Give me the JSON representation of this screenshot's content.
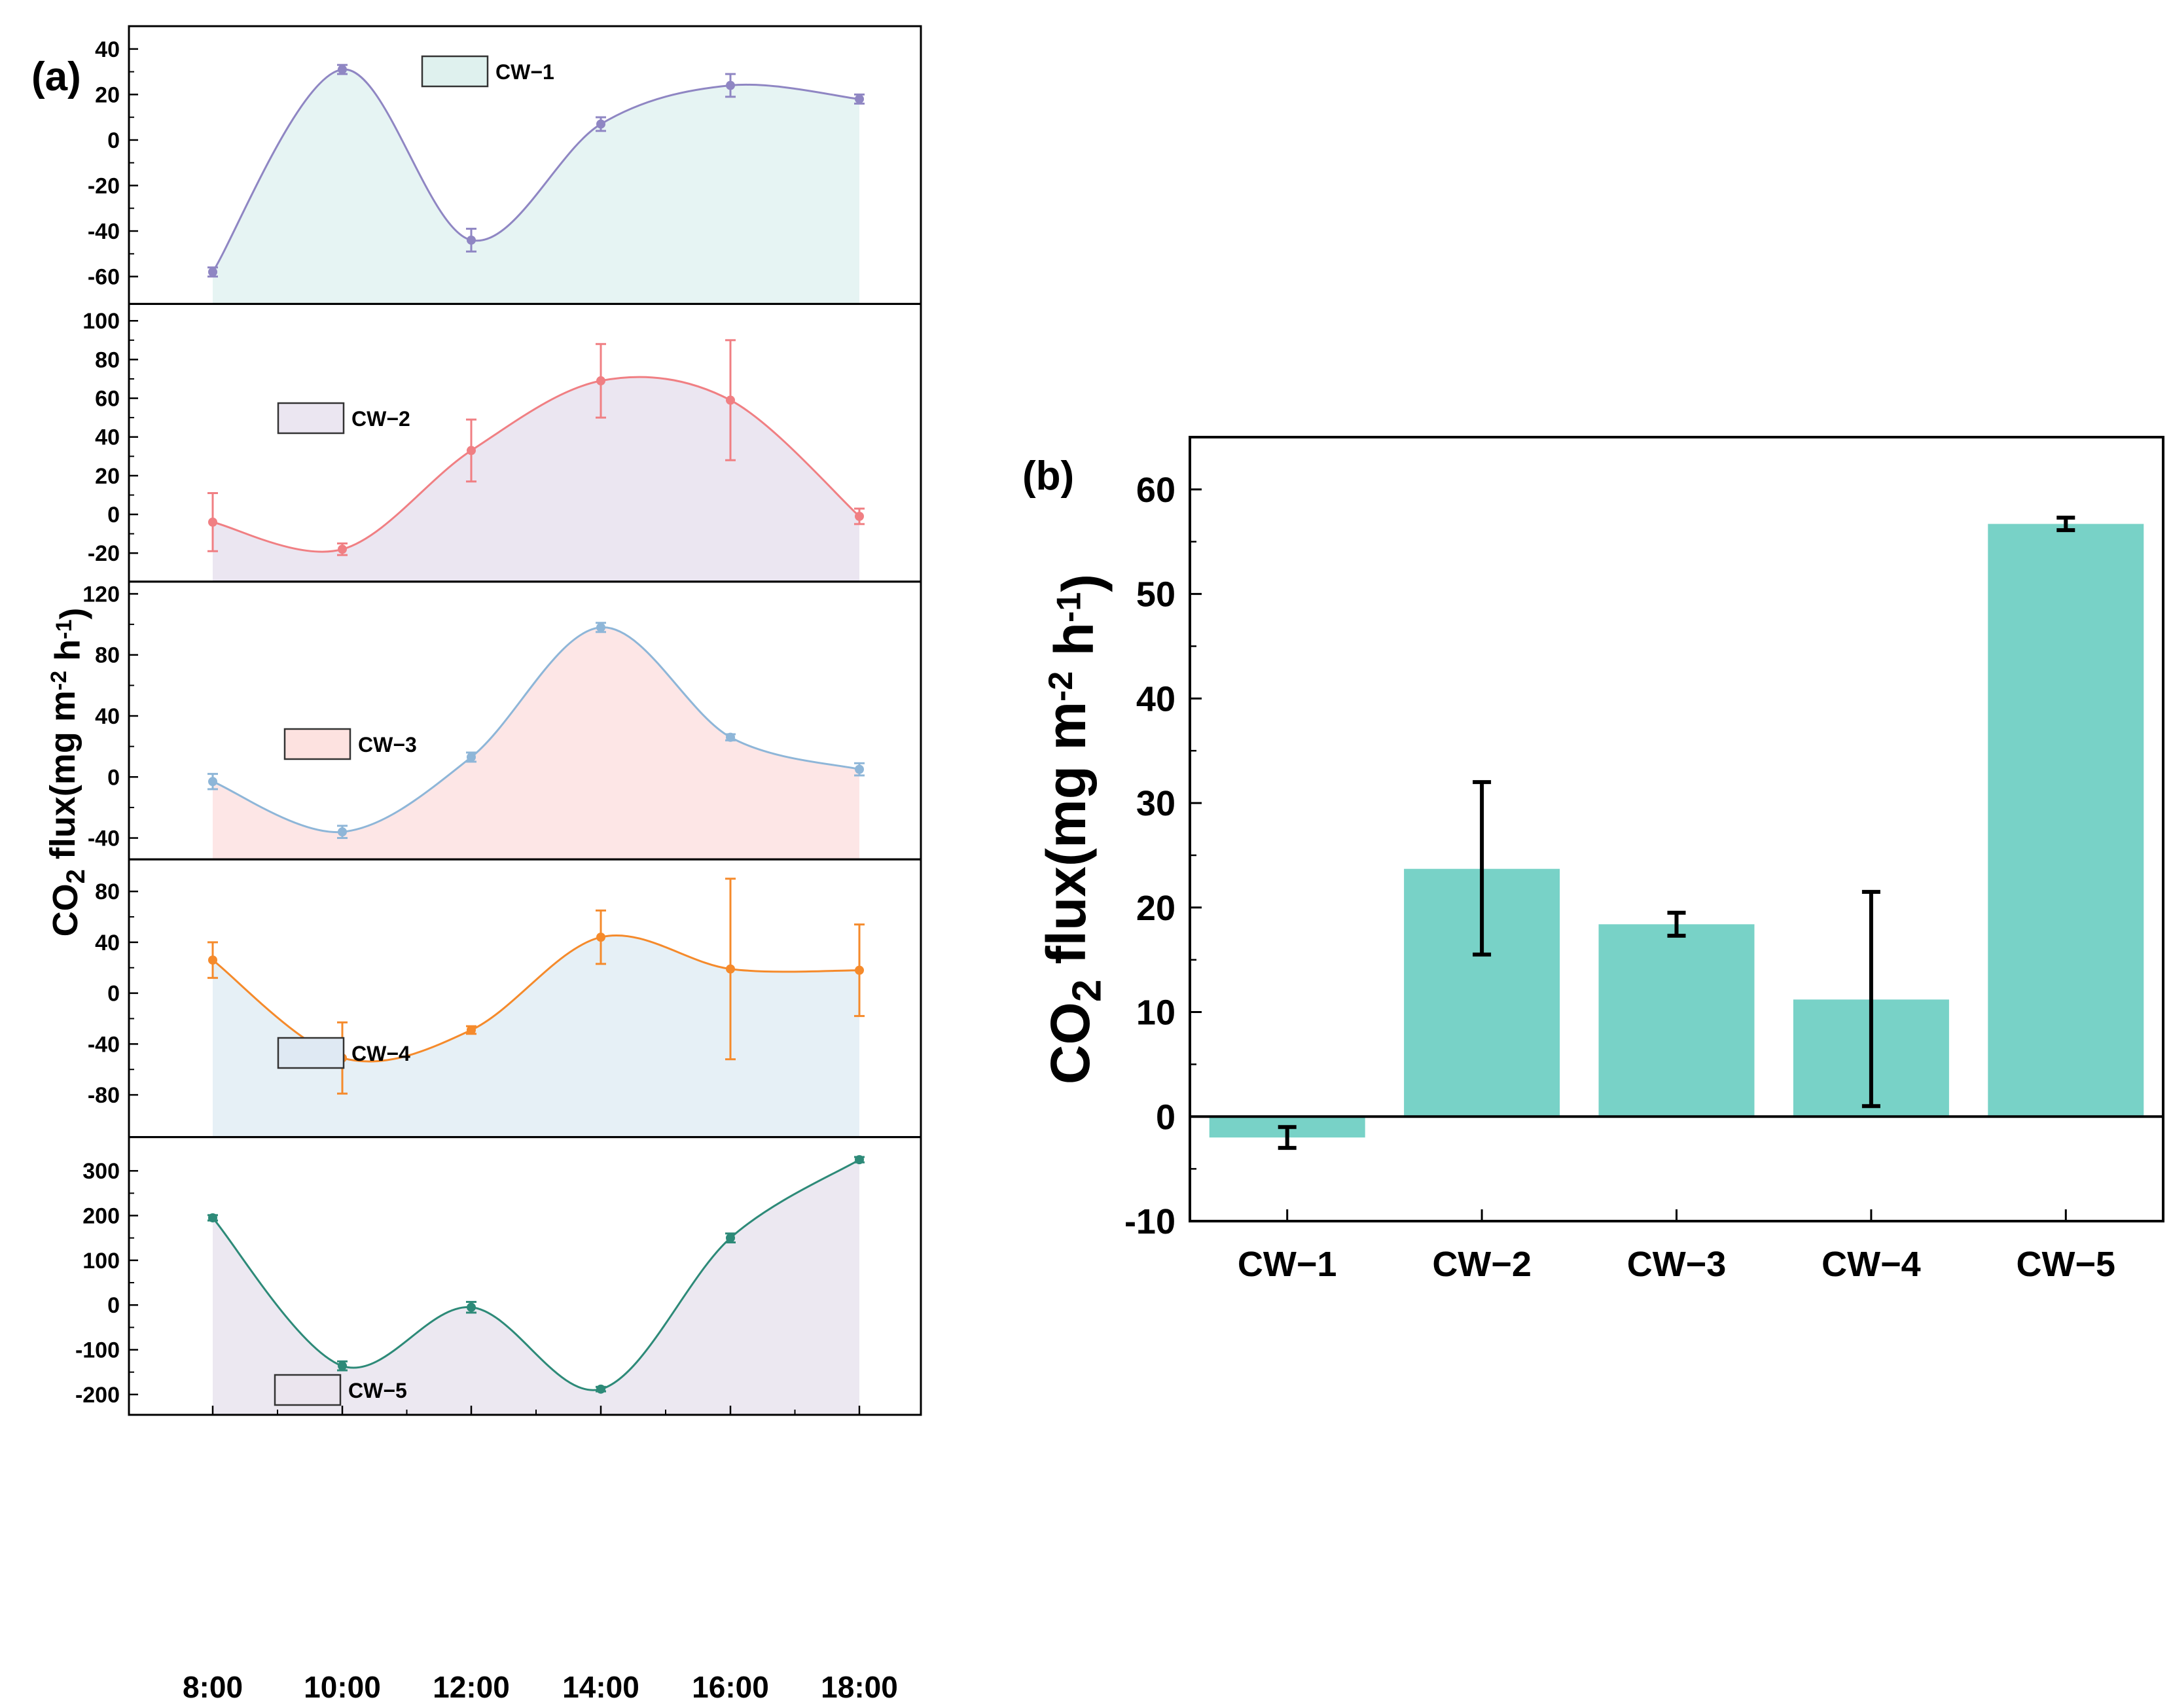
{
  "figure": {
    "panel_a_label": "(a)",
    "panel_b_label": "(b)"
  },
  "chart_data": [
    {
      "id": "panel-a",
      "type": "area",
      "xlabel": "",
      "ylabel": {
        "main": "CO",
        "sub": "2",
        "rest": " flux(mg m",
        "sup1": "-2",
        "mid": " h",
        "sup2": "-1",
        "end": ")"
      },
      "x": [
        "8:00",
        "10:00",
        "12:00",
        "14:00",
        "16:00",
        "18:00"
      ],
      "series": [
        {
          "name": "CW−1",
          "line_color": "#8f86c3",
          "fill_color": "#e6f4f3",
          "legend_fill": "#dff1ee",
          "values": [
            -58,
            31,
            -44,
            7,
            24,
            18
          ],
          "errors": [
            2,
            2,
            5,
            3,
            5,
            2
          ],
          "ylim": [
            -68,
            46
          ],
          "yticks": [
            -60,
            -40,
            -20,
            0,
            20,
            40
          ]
        },
        {
          "name": "CW−2",
          "line_color": "#f07f83",
          "fill_color": "#ebe6f1",
          "legend_fill": "#ebe6f1",
          "values": [
            -4,
            -18,
            33,
            69,
            59,
            -1
          ],
          "errors": [
            15,
            3,
            16,
            19,
            31,
            4
          ],
          "ylim": [
            -30,
            104
          ],
          "yticks": [
            -20,
            0,
            20,
            40,
            60,
            80,
            100
          ]
        },
        {
          "name": "CW−3",
          "line_color": "#8eb6d8",
          "fill_color": "#fde6e6",
          "legend_fill": "#fde2e0",
          "values": [
            -3,
            -36,
            13,
            98,
            26,
            5
          ],
          "errors": [
            5,
            4,
            3,
            3,
            2,
            4
          ],
          "ylim": [
            -48,
            122
          ],
          "yticks": [
            -40,
            0,
            40,
            80,
            120
          ]
        },
        {
          "name": "CW−4",
          "line_color": "#f58a2b",
          "fill_color": "#e6f0f6",
          "legend_fill": "#dfe9f3",
          "values": [
            26,
            -51,
            -29,
            44,
            19,
            18
          ],
          "errors": [
            14,
            28,
            3,
            21,
            71,
            36
          ],
          "ylim": [
            -106,
            98
          ],
          "yticks": [
            -80,
            -40,
            0,
            40,
            80
          ]
        },
        {
          "name": "CW−5",
          "line_color": "#2d8a78",
          "fill_color": "#ece8f1",
          "legend_fill": "#ebe5ee",
          "values": [
            195,
            -136,
            -5,
            -188,
            150,
            325
          ],
          "errors": [
            6,
            10,
            12,
            5,
            10,
            6
          ],
          "ylim": [
            -225,
            355
          ],
          "yticks": [
            -200,
            -100,
            0,
            100,
            200,
            300
          ]
        }
      ]
    },
    {
      "id": "panel-b",
      "type": "bar",
      "title": "",
      "xlabel": "",
      "ylabel": {
        "main": "CO",
        "sub": "2",
        "rest": " flux(mg m",
        "sup1": "-2",
        "mid": " h",
        "sup2": "-1",
        "end": ")"
      },
      "categories": [
        "CW−1",
        "CW−2",
        "CW−3",
        "CW−4",
        "CW−5"
      ],
      "values": [
        -2,
        23.7,
        18.4,
        11.2,
        56.7
      ],
      "error_low": [
        -3,
        15.5,
        17.3,
        1,
        56.1
      ],
      "error_high": [
        -1,
        32,
        19.5,
        21.5,
        57.3
      ],
      "ylim": [
        -10,
        65
      ],
      "yticks": [
        -10,
        0,
        10,
        20,
        30,
        40,
        50,
        60
      ],
      "bar_color": "#78d2c7"
    }
  ]
}
